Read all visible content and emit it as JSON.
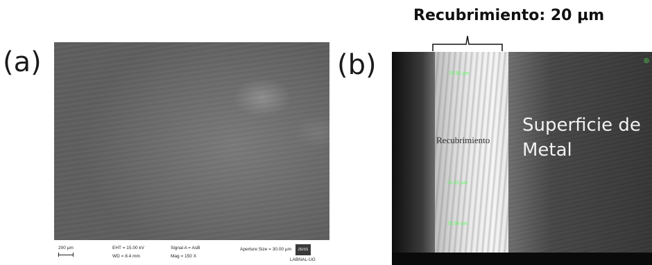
{
  "panel_a": {
    "label": "(a)",
    "infobar": {
      "scale": "200 µm",
      "eht": "EHT = 15.00 kV",
      "wd": "WD =  8.4 mm",
      "signal": "Signal A = AsB",
      "mag": "Mag =   150 X",
      "aperture": "Aperture Size = 30.00 µm",
      "lab": "LABNAL-UG",
      "logo": "ZEISS"
    }
  },
  "panel_b": {
    "label": "(b)",
    "coating_title": "Recubrimiento: 20 µm",
    "coating_label": "Recubrimiento",
    "metal_label_line1": "Superficie de",
    "metal_label_line2": "Metal",
    "measurements": [
      "20.50 µm",
      "21.41 µm",
      "20.58 µm"
    ]
  }
}
